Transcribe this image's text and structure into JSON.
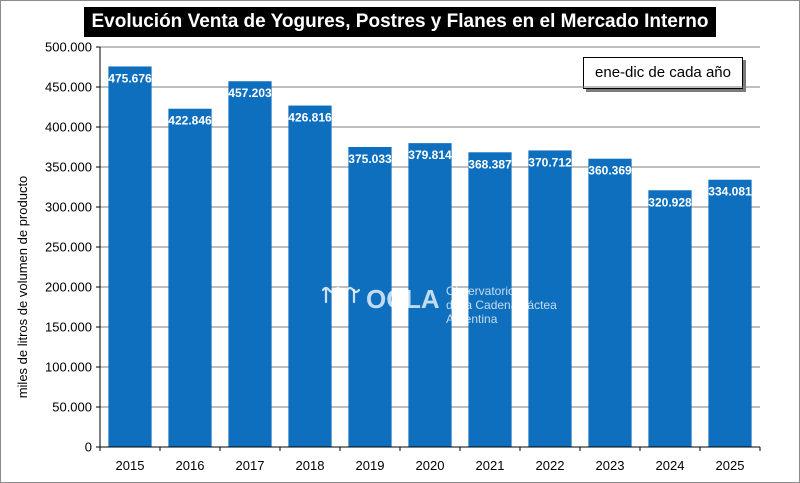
{
  "chart_data": {
    "type": "bar",
    "title": "Evolución Venta de Yogures, Postres y Flanes en el Mercado Interno",
    "subtitle": "ene-dic de cada año",
    "xlabel": "",
    "ylabel": "miles de litros de volumen de producto",
    "ylim": [
      0,
      500000
    ],
    "yticks": [
      0,
      50000,
      100000,
      150000,
      200000,
      250000,
      300000,
      350000,
      400000,
      450000,
      500000
    ],
    "ytick_labels": [
      "0",
      "50.000",
      "100.000",
      "150.000",
      "200.000",
      "250.000",
      "300.000",
      "350.000",
      "400.000",
      "450.000",
      "500.000"
    ],
    "categories": [
      "2015",
      "2016",
      "2017",
      "2018",
      "2019",
      "2020",
      "2021",
      "2022",
      "2023",
      "2024",
      "2025"
    ],
    "values": [
      475676,
      422846,
      457203,
      426816,
      375033,
      379814,
      368387,
      370712,
      360369,
      320928,
      334081
    ],
    "data_labels": [
      "475.676",
      "422.846",
      "457.203",
      "426.816",
      "375.033",
      "379.814",
      "368.387",
      "370.712",
      "360.369",
      "320.928",
      "334.081"
    ],
    "grid": true,
    "legend": "none",
    "colors": {
      "bar": "#0e6fbe",
      "title_bg": "#000000",
      "title_text": "#ffffff",
      "grid": "#7f7f7f"
    }
  },
  "watermark": {
    "brand": "OCLA",
    "line1": "Observatorio",
    "line2": "de la Cadena Láctea",
    "line3": "Argentina"
  }
}
